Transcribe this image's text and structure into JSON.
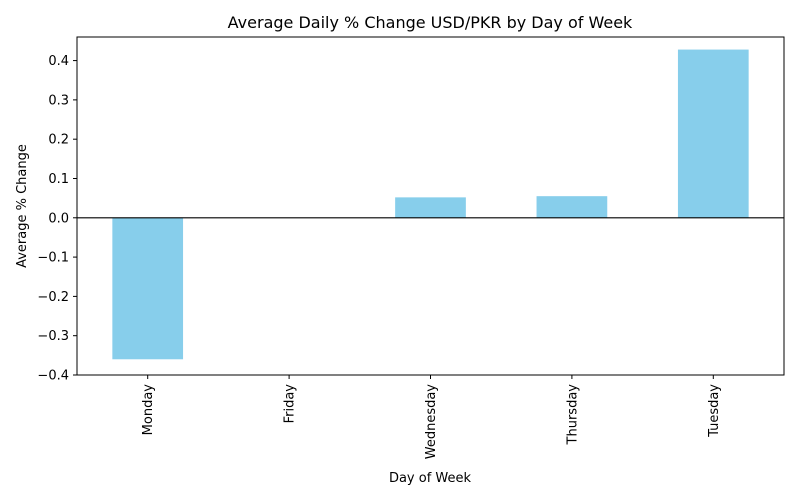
{
  "chart_data": {
    "type": "bar",
    "title": "Average Daily % Change USD/PKR by Day of Week",
    "xlabel": "Day of Week",
    "ylabel": "Average % Change",
    "categories": [
      "Monday",
      "Friday",
      "Wednesday",
      "Thursday",
      "Tuesday"
    ],
    "values": [
      -0.36,
      0.0,
      0.052,
      0.055,
      0.428
    ],
    "ylim": [
      -0.4,
      0.46
    ],
    "yticks": [
      -0.4,
      -0.3,
      -0.2,
      -0.1,
      0.0,
      0.1,
      0.2,
      0.3,
      0.4
    ],
    "ytick_labels": [
      "−0.4",
      "−0.3",
      "−0.2",
      "−0.1",
      "0.0",
      "0.1",
      "0.2",
      "0.3",
      "0.4"
    ],
    "bar_color": "#87ceeb",
    "zero_line": true,
    "grid": false,
    "legend": "none"
  }
}
